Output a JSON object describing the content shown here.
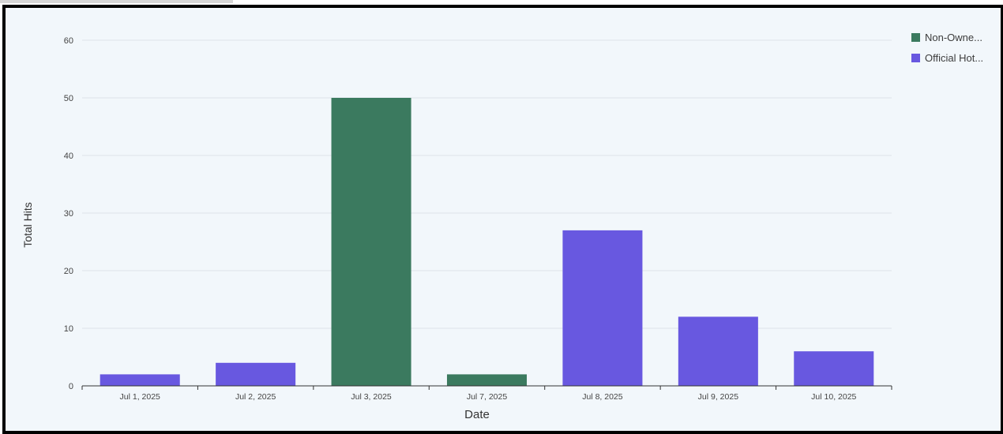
{
  "chart_data": {
    "type": "bar",
    "categories": [
      "Jul 1, 2025",
      "Jul 2, 2025",
      "Jul 3, 2025",
      "Jul 7, 2025",
      "Jul 8, 2025",
      "Jul 9, 2025",
      "Jul 10, 2025"
    ],
    "values": [
      2,
      4,
      50,
      2,
      27,
      12,
      6
    ],
    "bar_series": [
      "Official Hot...",
      "Official Hot...",
      "Non-Owne...",
      "Non-Owne...",
      "Official Hot...",
      "Official Hot...",
      "Official Hot..."
    ],
    "series": [
      {
        "name": "Non-Owne...",
        "color": "#3b7a5f"
      },
      {
        "name": "Official Hot...",
        "color": "#6858e0"
      }
    ],
    "xlabel": "Date",
    "ylabel": "Total Hits",
    "yticks": [
      0,
      10,
      20,
      30,
      40,
      50,
      60
    ],
    "ylim": [
      0,
      60
    ],
    "grid": true,
    "legend_position": "top-right"
  }
}
